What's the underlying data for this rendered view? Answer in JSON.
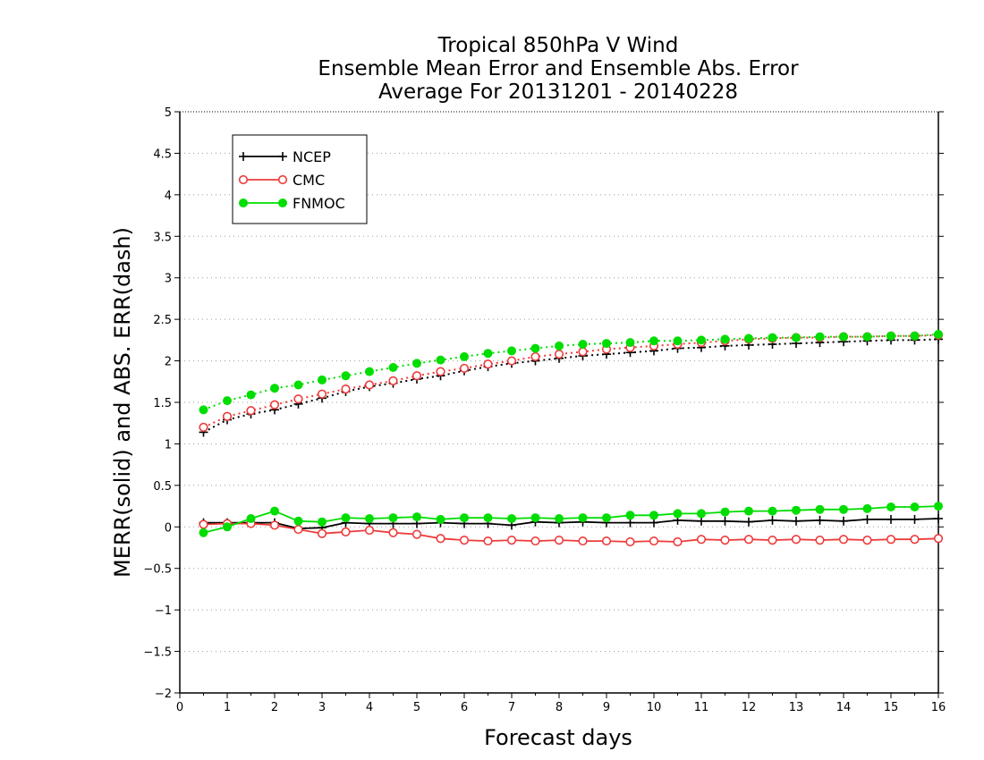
{
  "chart_data": {
    "type": "line",
    "title": [
      "Tropical 850hPa V Wind",
      "Ensemble Mean Error and Ensemble Abs. Error",
      "Average For 20131201 - 20140228"
    ],
    "xlabel": "Forecast days",
    "ylabel": "MERR(solid) and ABS. ERR(dash)",
    "xlim": [
      0,
      16
    ],
    "ylim": [
      -2,
      5
    ],
    "xticks": [
      0,
      1,
      2,
      3,
      4,
      5,
      6,
      7,
      8,
      9,
      10,
      11,
      12,
      13,
      14,
      15,
      16
    ],
    "xtick_labels": [
      "0",
      "1",
      "2",
      "3",
      "4",
      "5",
      "6",
      "7",
      "8",
      "9",
      "10",
      "11",
      "12",
      "13",
      "14",
      "15",
      "16"
    ],
    "yticks": [
      -2,
      -1.5,
      -1,
      -0.5,
      0,
      0.5,
      1,
      1.5,
      2,
      2.5,
      3,
      3.5,
      4,
      4.5,
      5
    ],
    "ytick_labels": [
      "−2",
      "−1.5",
      "−1",
      "−0.5",
      "0",
      "0.5",
      "1",
      "1.5",
      "2",
      "2.5",
      "3",
      "3.5",
      "4",
      "4.5",
      "5"
    ],
    "grid": "horizontal dotted",
    "legend_placement": "top-left",
    "x": [
      0.5,
      1,
      1.5,
      2,
      2.5,
      3,
      3.5,
      4,
      4.5,
      5,
      5.5,
      6,
      6.5,
      7,
      7.5,
      8,
      8.5,
      9,
      9.5,
      10,
      10.5,
      11,
      11.5,
      12,
      12.5,
      13,
      13.5,
      14,
      14.5,
      15,
      15.5,
      16
    ],
    "series": [
      {
        "name": "NCEP",
        "color": "#000000",
        "marker": "plus",
        "merr": [
          0.05,
          0.05,
          0.05,
          0.05,
          -0.02,
          -0.01,
          0.05,
          0.04,
          0.04,
          0.04,
          0.05,
          0.04,
          0.04,
          0.02,
          0.06,
          0.05,
          0.06,
          0.05,
          0.05,
          0.05,
          0.08,
          0.07,
          0.07,
          0.06,
          0.08,
          0.07,
          0.08,
          0.07,
          0.09,
          0.09,
          0.09,
          0.1
        ],
        "abs_err": [
          1.14,
          1.29,
          1.36,
          1.41,
          1.48,
          1.55,
          1.63,
          1.69,
          1.73,
          1.78,
          1.82,
          1.88,
          1.93,
          1.97,
          2.0,
          2.03,
          2.06,
          2.08,
          2.1,
          2.12,
          2.15,
          2.16,
          2.18,
          2.19,
          2.2,
          2.21,
          2.22,
          2.23,
          2.24,
          2.25,
          2.25,
          2.26
        ]
      },
      {
        "name": "CMC",
        "color": "#ee3b3b",
        "marker": "open-circle",
        "merr": [
          0.03,
          0.04,
          0.04,
          0.02,
          -0.03,
          -0.08,
          -0.06,
          -0.04,
          -0.07,
          -0.09,
          -0.14,
          -0.16,
          -0.17,
          -0.16,
          -0.17,
          -0.16,
          -0.17,
          -0.17,
          -0.18,
          -0.17,
          -0.18,
          -0.15,
          -0.16,
          -0.15,
          -0.16,
          -0.15,
          -0.16,
          -0.15,
          -0.16,
          -0.15,
          -0.15,
          -0.14
        ],
        "abs_err": [
          1.2,
          1.33,
          1.4,
          1.47,
          1.54,
          1.6,
          1.66,
          1.71,
          1.76,
          1.82,
          1.87,
          1.91,
          1.96,
          2.0,
          2.05,
          2.08,
          2.11,
          2.14,
          2.16,
          2.18,
          2.2,
          2.22,
          2.24,
          2.26,
          2.27,
          2.28,
          2.28,
          2.29,
          2.29,
          2.3,
          2.3,
          2.31
        ]
      },
      {
        "name": "FNMOC",
        "color": "#00dd00",
        "marker": "filled-circle",
        "merr": [
          -0.07,
          0.0,
          0.1,
          0.19,
          0.07,
          0.06,
          0.11,
          0.1,
          0.11,
          0.12,
          0.09,
          0.11,
          0.11,
          0.1,
          0.11,
          0.1,
          0.11,
          0.11,
          0.14,
          0.14,
          0.16,
          0.16,
          0.18,
          0.19,
          0.19,
          0.2,
          0.21,
          0.21,
          0.22,
          0.24,
          0.24,
          0.25
        ],
        "abs_err": [
          1.41,
          1.52,
          1.59,
          1.67,
          1.71,
          1.77,
          1.82,
          1.87,
          1.92,
          1.97,
          2.01,
          2.05,
          2.09,
          2.12,
          2.15,
          2.18,
          2.2,
          2.21,
          2.22,
          2.24,
          2.24,
          2.25,
          2.26,
          2.27,
          2.28,
          2.28,
          2.29,
          2.29,
          2.29,
          2.3,
          2.3,
          2.32
        ]
      }
    ]
  }
}
